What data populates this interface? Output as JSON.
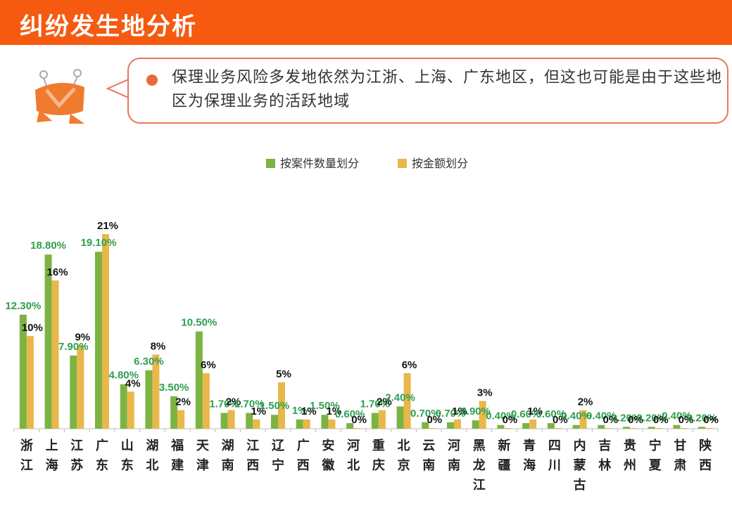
{
  "header": {
    "title": "纠纷发生地分析"
  },
  "callout": {
    "text": "保理业务风险多发地依然为江浙、上海、广东地区，但这也可能是由于这些地区为保理业务的活跃地域"
  },
  "colors": {
    "count": "#7cb342",
    "amount": "#e8b84a",
    "count_label": "#2e9e4f",
    "amount_label": "#111111",
    "header": "#f55a10"
  },
  "chart_data": {
    "type": "bar",
    "categories": [
      "浙江",
      "上海",
      "江苏",
      "广东",
      "山东",
      "湖北",
      "福建",
      "天津",
      "湖南",
      "江西",
      "辽宁",
      "广西",
      "安徽",
      "河北",
      "重庆",
      "北京",
      "云南",
      "河南",
      "黑龙江",
      "新疆",
      "青海",
      "四川",
      "内蒙古",
      "吉林",
      "贵州",
      "宁夏",
      "甘肃",
      "陕西"
    ],
    "series": [
      {
        "name": "按案件数量划分",
        "values": [
          12.3,
          18.8,
          7.9,
          19.1,
          4.8,
          6.3,
          3.5,
          10.5,
          1.7,
          1.7,
          1.5,
          1.0,
          1.5,
          0.6,
          1.7,
          2.4,
          0.7,
          0.7,
          0.9,
          0.4,
          0.6,
          0.6,
          0.4,
          0.4,
          0.2,
          0.2,
          0.4,
          0.2
        ],
        "labels": [
          "12.30%",
          "18.80%",
          "7.90%",
          "19.10%",
          "4.80%",
          "6.30%",
          "3.50%",
          "10.50%",
          "1.70%",
          "1.70%",
          "1.50%",
          "1%",
          "1.50%",
          "0.60%",
          "1.70%",
          "2.40%",
          "0.70%",
          "0.70%",
          "0.90%",
          "0.40%",
          "0.60%",
          "0.60%",
          "0.40%",
          "0.40%",
          "0.20%",
          "0.20%",
          "0.40%",
          "0.20%"
        ]
      },
      {
        "name": "按金额划分",
        "values": [
          10,
          16,
          9,
          21,
          4,
          8,
          2,
          6,
          2,
          1,
          5,
          1,
          1,
          0,
          2,
          6,
          0,
          1,
          3,
          0,
          1,
          0,
          2,
          0,
          0,
          0,
          0,
          0
        ],
        "labels": [
          "10%",
          "16%",
          "9%",
          "21%",
          "4%",
          "8%",
          "2%",
          "6%",
          "2%",
          "1%",
          "5%",
          "1%",
          "1%",
          "0%",
          "2%",
          "6%",
          "0%",
          "1%",
          "3%",
          "0%",
          "1%",
          "0%",
          "2%",
          "0%",
          "0%",
          "0%",
          "0%",
          "0%"
        ]
      }
    ],
    "ylim": [
      0,
      22
    ],
    "legend": "top-center"
  }
}
